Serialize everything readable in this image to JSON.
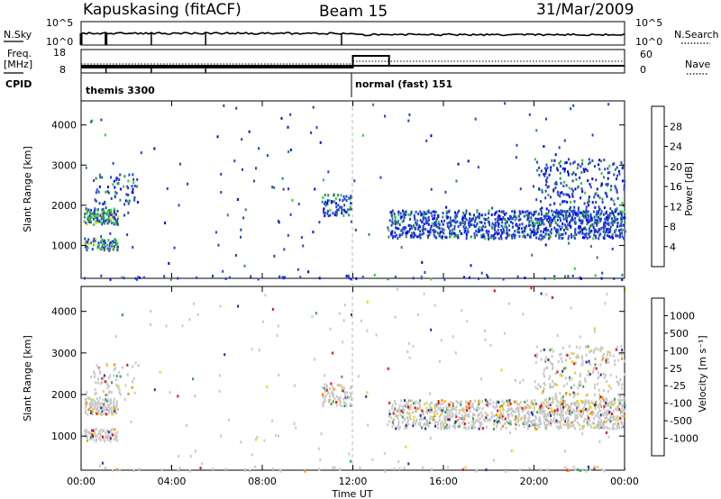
{
  "header": {
    "station": "Kapuskasing (fitACF)",
    "beam": "Beam 15",
    "date": "31/Mar/2009"
  },
  "side_labels": {
    "nsky": "N.Sky",
    "freq_line1": "Freq.",
    "freq_line2": "[MHz]",
    "cpid": "CPID",
    "nsearch": "N.Search",
    "nave": "Nave",
    "nsky_ticks": [
      "10^5",
      "10^0"
    ],
    "freq_ticks": [
      "18",
      "8"
    ],
    "nave_ticks": [
      "60",
      "0"
    ]
  },
  "cpid_labels": [
    "themis 3300",
    "normal (fast) 151"
  ],
  "chart_data": {
    "type": "scatter",
    "x_label": "Time UT",
    "x_ticks": [
      "00:00",
      "04:00",
      "08:00",
      "12:00",
      "16:00",
      "20:00",
      "00:00"
    ],
    "x_range_hours": [
      0,
      24
    ],
    "y_label": "Slant Range [km]",
    "y_ticks": [
      "1000",
      "2000",
      "3000",
      "4000"
    ],
    "y_range_km": [
      180,
      4600
    ],
    "panels": [
      {
        "name": "power",
        "colorbar_label": "Power [dB]",
        "colorbar_ticks": [
          "4",
          "8",
          "12",
          "16",
          "20",
          "24",
          "28"
        ],
        "colors": [
          "#0000ff",
          "#2244cc",
          "#2e8b57",
          "#33cc33",
          "#ffd000",
          "#ff8800",
          "#ff4400",
          "#ff0000"
        ]
      },
      {
        "name": "velocity",
        "colorbar_label": "Velocity [m s⁻¹]",
        "colorbar_ticks": [
          "1000",
          "500",
          "100",
          "25",
          "-25",
          "-100",
          "-500",
          "-1000"
        ],
        "colors": [
          "#1b2fb8",
          "#2e6ea0",
          "#3aa060",
          "#77dd33",
          "#c8c8c8",
          "#ffcc00",
          "#ff8c00",
          "#ff5000",
          "#ff0000"
        ]
      }
    ],
    "cpid_change_hour": 12,
    "scatter_regions": [
      {
        "t0": 0.1,
        "t1": 1.6,
        "r0": 1550,
        "r1": 1950,
        "density": 0.7,
        "level": 2
      },
      {
        "t0": 0.1,
        "t1": 1.6,
        "r0": 900,
        "r1": 1200,
        "density": 0.6,
        "level": 2
      },
      {
        "t0": 0.5,
        "t1": 2.5,
        "r0": 2000,
        "r1": 2800,
        "density": 0.15,
        "level": 1
      },
      {
        "t0": 10.6,
        "t1": 11.9,
        "r0": 1750,
        "r1": 2300,
        "density": 0.35,
        "level": 1
      },
      {
        "t0": 13.5,
        "t1": 24,
        "r0": 1200,
        "r1": 1900,
        "density": 0.45,
        "level": 1
      },
      {
        "t0": 20,
        "t1": 24,
        "r0": 1500,
        "r1": 3200,
        "density": 0.15,
        "level": 1
      },
      {
        "t0": 0,
        "t1": 24,
        "r0": 180,
        "r1": 300,
        "density": 0.08,
        "level": 1
      }
    ]
  }
}
